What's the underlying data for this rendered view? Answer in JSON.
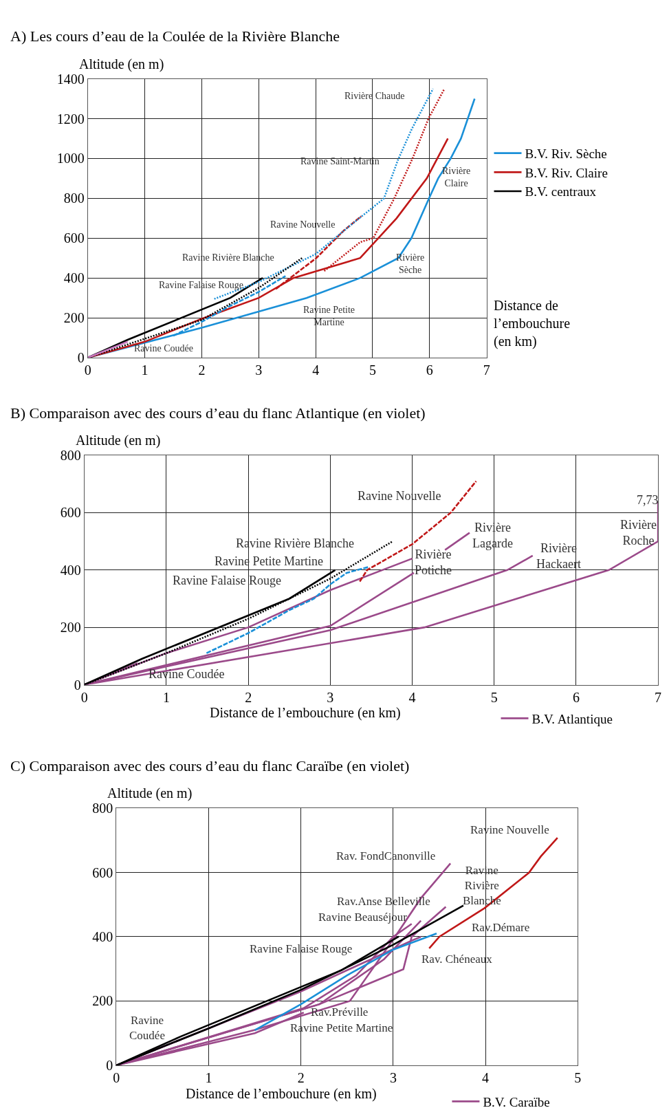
{
  "chart_data": [
    {
      "type": "line",
      "title": "A) Les cours d’eau de la Coulée de la Rivière Blanche",
      "ylabel": "Altitude (en m)",
      "xlabel": "Distance de\nl’embouchure\n(en km)",
      "xlim": [
        0,
        7
      ],
      "xticks": [
        0,
        1,
        2,
        3,
        4,
        5,
        6,
        7
      ],
      "ylim": [
        0,
        1400
      ],
      "yticks": [
        0,
        200,
        400,
        600,
        800,
        1000,
        1200,
        1400
      ],
      "grid": true,
      "legend": "right",
      "series": [
        {
          "name": "B.V. Riv. Sèche",
          "color": "#1a90d8",
          "line_style": "solid",
          "x": [
            0,
            1,
            2,
            3.84,
            4.78,
            5.45,
            5.68,
            5.99,
            6.15,
            6.37,
            6.55,
            6.79
          ],
          "values": [
            0,
            75,
            150,
            300,
            400,
            500,
            600,
            800,
            900,
            1000,
            1100,
            1300
          ]
        },
        {
          "name": "B.V. Riv. Claire",
          "color": "#c01818",
          "line_style": "solid",
          "x": [
            0,
            1,
            2,
            3,
            3.61,
            4.78,
            5.42,
            5.95,
            6.32
          ],
          "values": [
            0,
            80,
            195,
            300,
            400,
            500,
            700,
            900,
            1100
          ]
        },
        {
          "name": "B.V. centraux",
          "color": "#000000",
          "line_style": "solid",
          "x": [
            0,
            0.7,
            2.5,
            3.07
          ],
          "values": [
            0,
            90,
            300,
            400
          ]
        },
        {
          "color": "#c01818",
          "line_style": "dotted",
          "x": [
            4.15,
            4.78,
            5.01,
            5.38,
            5.7,
            5.98,
            6.26
          ],
          "values": [
            435,
            580,
            600,
            800,
            1000,
            1200,
            1350
          ]
        },
        {
          "color": "#c01818",
          "line_style": "dashed",
          "x": [
            3.3,
            4.01,
            4.5,
            4.8
          ],
          "values": [
            345,
            500,
            640,
            710
          ]
        },
        {
          "color": "#1a90d8",
          "line_style": "dotted",
          "x": [
            2.22,
            3,
            4,
            4.55,
            5.2,
            5.44,
            5.69,
            6.06
          ],
          "values": [
            295,
            380,
            520,
            650,
            800,
            990,
            1150,
            1350
          ]
        },
        {
          "color": "#1a90d8",
          "line_style": "dashed",
          "x": [
            1.5,
            2,
            2.5,
            3,
            3.47
          ],
          "values": [
            110,
            180,
            260,
            330,
            410
          ]
        },
        {
          "color": "#000000",
          "line_style": "dotted",
          "x": [
            0,
            1,
            2,
            3,
            3.76
          ],
          "values": [
            0,
            95,
            190,
            350,
            500
          ]
        },
        {
          "color": "#c878c0",
          "line_style": "solid",
          "x": [
            0,
            0.7
          ],
          "values": [
            0,
            80
          ]
        }
      ],
      "annotations": [
        "Rivière Chaude",
        "Ravine Saint-Martin",
        "Rivière\nClaire",
        "Ravine Nouvelle",
        "Ravine Rivière Blanche",
        "Ravine Falaise Rouge",
        "Ravine Petite\nMartine",
        "Rivière\nSèche",
        "Ravine Coudée"
      ]
    },
    {
      "type": "line",
      "title": "B) Comparaison avec des cours d’eau du flanc Atlantique (en violet)",
      "ylabel": "Altitude (en m)",
      "xlabel": "Distance de l’embouchure (en km)",
      "xlim": [
        0,
        7
      ],
      "xticks": [
        0,
        1,
        2,
        3,
        4,
        5,
        6,
        7
      ],
      "ylim": [
        0,
        800
      ],
      "yticks": [
        0,
        200,
        400,
        600,
        800
      ],
      "grid": true,
      "legend": "bottom right",
      "series": [
        {
          "name": "B.V. Atlantique",
          "color": "#9b4a8a",
          "line_style": "solid",
          "x": [
            0,
            1,
            2,
            3,
            4
          ],
          "values": [
            0,
            110,
            200,
            330,
            440
          ]
        },
        {
          "color": "#9b4a8a",
          "line_style": "solid",
          "x": [
            4.4,
            4.7
          ],
          "values": [
            470,
            530
          ]
        },
        {
          "color": "#9b4a8a",
          "line_style": "solid",
          "x": [
            0,
            3,
            4.02
          ],
          "values": [
            0,
            205,
            390
          ]
        },
        {
          "color": "#9b4a8a",
          "line_style": "solid",
          "x": [
            0,
            3,
            5.16,
            5.47
          ],
          "values": [
            0,
            190,
            400,
            450
          ]
        },
        {
          "color": "#9b4a8a",
          "line_style": "solid",
          "x": [
            0,
            4.15,
            6.4,
            7,
            7
          ],
          "values": [
            0,
            200,
            400,
            500,
            640
          ]
        },
        {
          "color": "#9b4a8a",
          "line_style": "solid",
          "x": [
            0,
            0.65
          ],
          "values": [
            0,
            75
          ]
        },
        {
          "color": "#000000",
          "line_style": "solid",
          "x": [
            0,
            0.7,
            2.5,
            3.06
          ],
          "values": [
            0,
            90,
            300,
            400
          ]
        },
        {
          "color": "#000000",
          "line_style": "dotted",
          "x": [
            0,
            1,
            2,
            3,
            3.76
          ],
          "values": [
            0,
            110,
            230,
            370,
            500
          ]
        },
        {
          "color": "#1a90d8",
          "line_style": "dashed",
          "x": [
            1.49,
            2,
            2.5,
            2.8,
            3,
            3.2,
            3.46
          ],
          "values": [
            110,
            180,
            260,
            300,
            350,
            390,
            410
          ]
        },
        {
          "color": "#c01818",
          "line_style": "dashed",
          "x": [
            3.36,
            3.45,
            4,
            4.47,
            4.78
          ],
          "values": [
            360,
            400,
            490,
            600,
            710
          ]
        }
      ],
      "annotations": [
        "Ravine Nouvelle",
        "Ravine Rivière Blanche",
        "Ravine Petite Martine",
        "Ravine Falaise Rouge",
        "Ravine Coudée",
        "Rivière\nLagarde",
        "Rivière\nPotiche",
        "Rivière\nHackaert",
        "Rivière\nRoche",
        "7,73"
      ]
    },
    {
      "type": "line",
      "title": "C) Comparaison avec des cours d’eau du flanc Caraïbe (en violet)",
      "ylabel": "Altitude (en m)",
      "xlabel": "Distance de l’embouchure (en km)",
      "xlim": [
        0,
        5
      ],
      "xticks": [
        0,
        1,
        2,
        3,
        4,
        5
      ],
      "ylim": [
        0,
        800
      ],
      "yticks": [
        0,
        200,
        400,
        600,
        800
      ],
      "grid": true,
      "legend": "bottom right",
      "series": [
        {
          "name": "B.V. Caraïbe",
          "color": "#9b4a8a",
          "line_style": "solid",
          "x": [
            0,
            1.5,
            2.53,
            3.02,
            3.3,
            3.62
          ],
          "values": [
            0,
            110,
            200,
            400,
            520,
            628
          ]
        },
        {
          "color": "#9b4a8a",
          "line_style": "solid",
          "x": [
            0,
            2.2,
            2.9,
            3.3
          ],
          "values": [
            0,
            190,
            330,
            450
          ]
        },
        {
          "color": "#9b4a8a",
          "line_style": "solid",
          "x": [
            0,
            2.03,
            2.6,
            3.0,
            3.2
          ],
          "values": [
            0,
            178,
            280,
            400,
            440
          ]
        },
        {
          "color": "#9b4a8a",
          "line_style": "solid",
          "x": [
            0,
            2,
            3.2,
            3.3
          ],
          "values": [
            0,
            230,
            388,
            400
          ]
        },
        {
          "color": "#9b4a8a",
          "line_style": "solid",
          "x": [
            0,
            2.2,
            3.11,
            3.2,
            3.57
          ],
          "values": [
            0,
            190,
            299,
            400,
            493
          ]
        },
        {
          "color": "#9b4a8a",
          "line_style": "solid",
          "x": [
            0,
            1.5,
            2.03
          ],
          "values": [
            0,
            100,
            164
          ]
        },
        {
          "color": "#9b4a8a",
          "line_style": "solid",
          "x": [
            0,
            0.7
          ],
          "values": [
            0,
            80
          ]
        },
        {
          "color": "#000000",
          "line_style": "solid",
          "x": [
            0,
            1,
            2,
            3,
            3.76
          ],
          "values": [
            0,
            115,
            235,
            375,
            497
          ]
        },
        {
          "color": "#000000",
          "line_style": "solid",
          "x": [
            0,
            0.7,
            2.44,
            3.06
          ],
          "values": [
            0,
            90,
            296,
            401
          ]
        },
        {
          "color": "#1a90d8",
          "line_style": "solid",
          "x": [
            1.5,
            2,
            2.5,
            3,
            3.47
          ],
          "values": [
            109,
            190,
            280,
            360,
            410
          ]
        },
        {
          "color": "#c01818",
          "line_style": "solid",
          "x": [
            3.39,
            3.5,
            3.99,
            4.47,
            4.6,
            4.78
          ],
          "values": [
            364,
            400,
            489,
            599,
            650,
            708
          ]
        }
      ],
      "annotations": [
        "Ravine Nouvelle",
        "Rav. FondCanonville",
        "Ravine\nRivière\nBlanche",
        "Rav.Anse Belleville",
        "Ravine Beauséjour",
        "Rav.Démare",
        "Ravine Falaise Rouge",
        "Rav. Chéneaux",
        "Rav.Préville",
        "Ravine Petite Martine",
        "Ravine\nCoudée"
      ]
    }
  ]
}
